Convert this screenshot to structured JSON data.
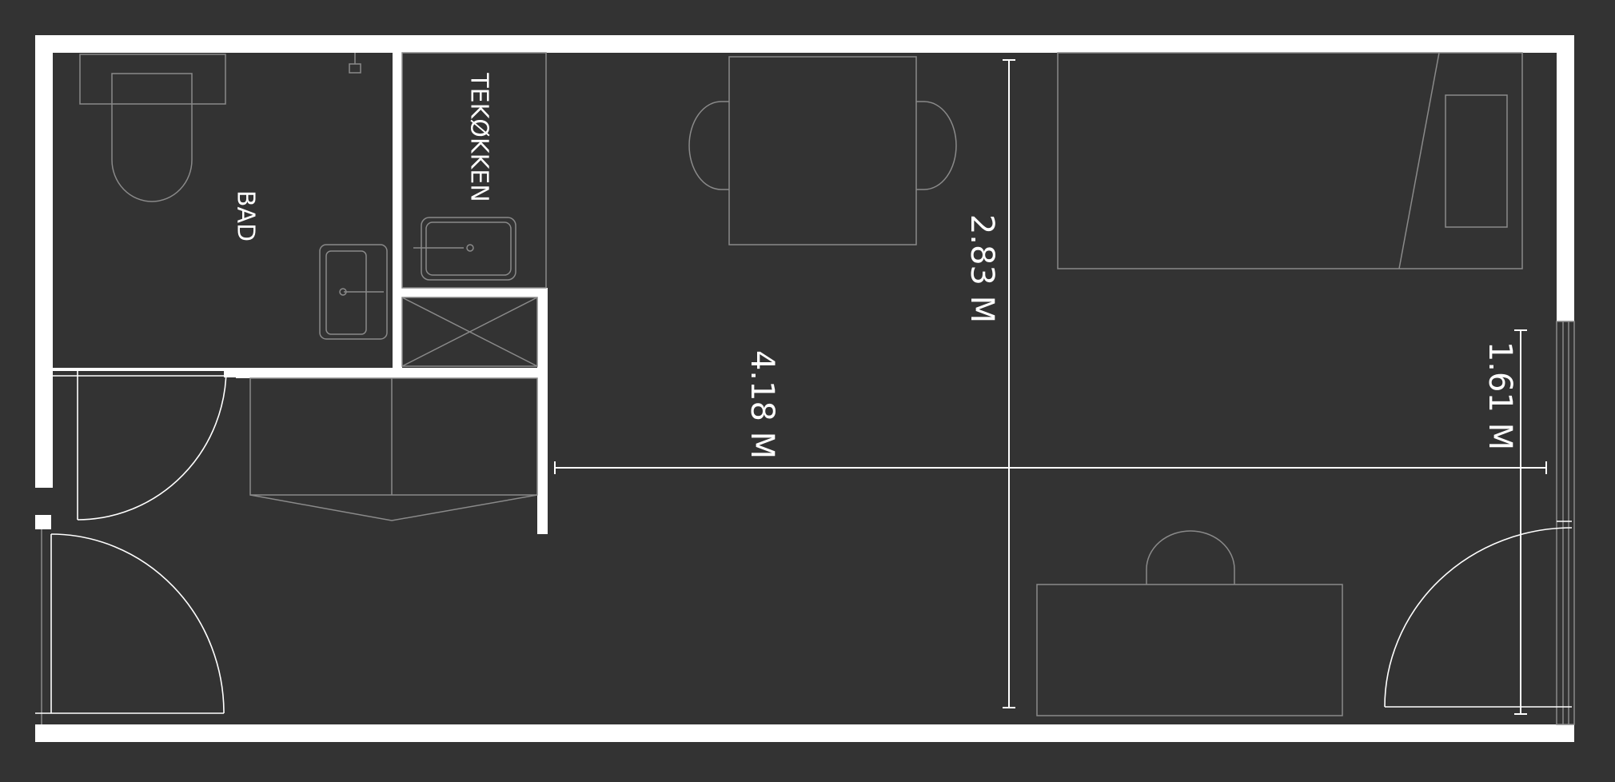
{
  "colors": {
    "background": "#333333",
    "wall": "#ffffff",
    "line": "#ffffff",
    "thin_line": "#8a8a8a"
  },
  "labels": {
    "bathroom": "BAD",
    "kitchenette": "TEKØKKEN",
    "dim_height": "2.83 M",
    "dim_width": "4.18 M",
    "dim_window": "1.61 M"
  }
}
